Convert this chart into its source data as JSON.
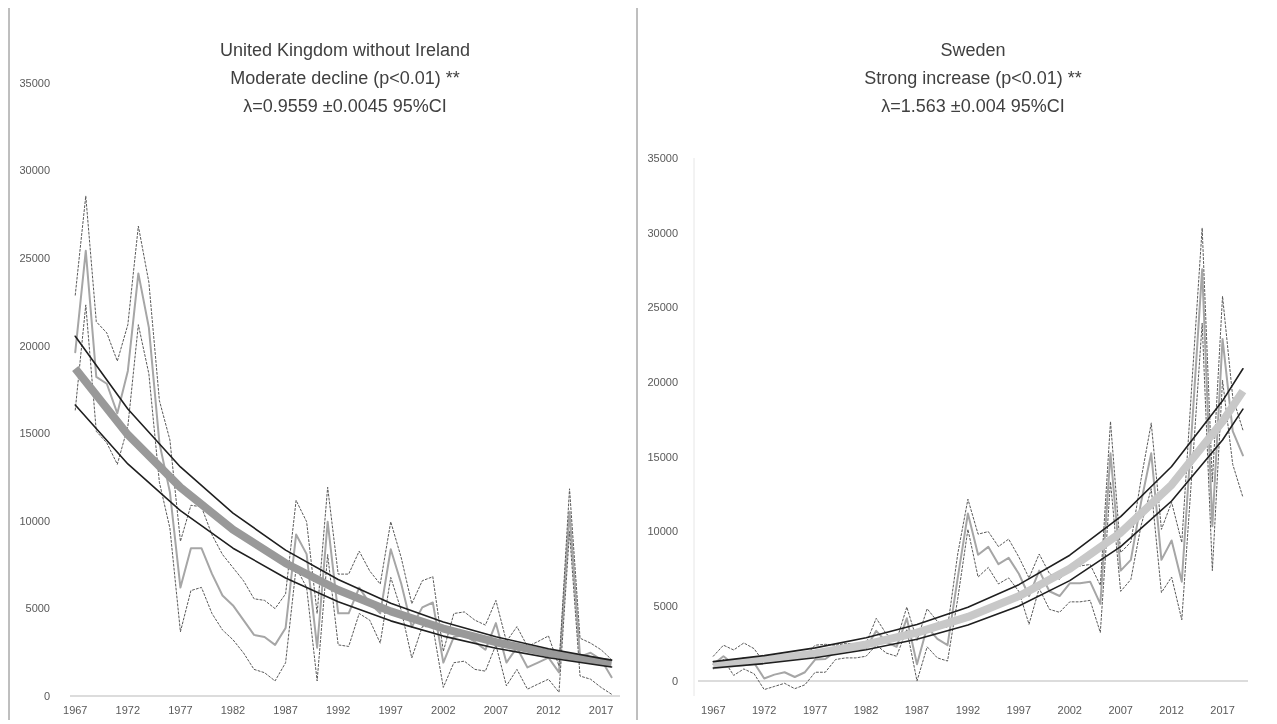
{
  "chart_data": [
    {
      "type": "line",
      "title": "United Kingdom without Ireland",
      "subtitle": "Moderate decline (p<0.01) **\nλ=0.9559 ±0.0045 95%CI",
      "x": [
        1967,
        1968,
        1969,
        1970,
        1971,
        1972,
        1973,
        1974,
        1975,
        1976,
        1977,
        1978,
        1979,
        1980,
        1981,
        1982,
        1983,
        1984,
        1985,
        1986,
        1987,
        1988,
        1989,
        1990,
        1991,
        1992,
        1993,
        1994,
        1995,
        1996,
        1997,
        1998,
        1999,
        2000,
        2001,
        2002,
        2003,
        2004,
        2005,
        2006,
        2007,
        2008,
        2009,
        2010,
        2011,
        2012,
        2013,
        2014,
        2015,
        2016,
        2017,
        2018
      ],
      "xlim": [
        1966.5,
        2018.8
      ],
      "xticks": [
        1967,
        1972,
        1977,
        1982,
        1987,
        1992,
        1997,
        2002,
        2007,
        2012,
        2017
      ],
      "ylim": [
        0,
        35000
      ],
      "yticks": [
        0,
        5000,
        10000,
        15000,
        20000,
        25000,
        30000,
        35000
      ],
      "series": [
        {
          "color": "#a6a6a6",
          "line_style": "solid",
          "values": [
            19630,
            25420,
            18220,
            17830,
            16140,
            18560,
            24130,
            21030,
            14450,
            11640,
            6190,
            8440,
            8440,
            6970,
            5740,
            5170,
            4330,
            3490,
            3370,
            2920,
            3880,
            9220,
            8100,
            2760,
            9950,
            4720,
            4720,
            6190,
            5290,
            4720,
            8380,
            6410,
            3940,
            5060,
            5340,
            1910,
            3370,
            3490,
            3090,
            2640,
            4160,
            1910,
            2760,
            1630,
            1910,
            2190,
            1350,
            10520,
            2250,
            2470,
            2080,
            1070
          ]
        },
        {
          "color": "#595959",
          "line_style": "dotted",
          "values": [
            22890,
            28550,
            21370,
            20730,
            19120,
            21200,
            26830,
            23620,
            16870,
            14620,
            8830,
            10890,
            10800,
            9200,
            8080,
            7330,
            6580,
            5550,
            5460,
            4990,
            5830,
            11170,
            9950,
            4710,
            11920,
            6960,
            6960,
            8270,
            7140,
            6390,
            9950,
            7890,
            5270,
            6580,
            6810,
            2550,
            4710,
            4800,
            4330,
            4050,
            5460,
            3110,
            3960,
            2830,
            3110,
            3430,
            1710,
            11830,
            3300,
            3020,
            2640,
            2080
          ]
        },
        {
          "color": "#595959",
          "line_style": "dotted",
          "values": [
            16330,
            22330,
            15110,
            14450,
            13230,
            15390,
            21200,
            18390,
            12200,
            9580,
            3670,
            6020,
            6200,
            4710,
            3770,
            3210,
            2460,
            1520,
            1330,
            860,
            1900,
            7330,
            6200,
            860,
            8080,
            2920,
            2830,
            4710,
            4330,
            3020,
            6770,
            4890,
            2170,
            3960,
            3960,
            490,
            1900,
            1990,
            1520,
            1420,
            2920,
            580,
            1520,
            390,
            680,
            960,
            210,
            9390,
            1140,
            960,
            490,
            100
          ]
        },
        {
          "color": "#999999",
          "line_style": "solid",
          "x": [
            1967,
            1972,
            1977,
            1982,
            1987,
            1992,
            1997,
            2002,
            2007,
            2012,
            2017,
            2018
          ],
          "values": [
            18700,
            14920,
            11910,
            9500,
            7580,
            6050,
            4830,
            3850,
            3070,
            2450,
            1960,
            1870
          ]
        },
        {
          "color": "#1f1f1f",
          "line_style": "solid",
          "x": [
            1967,
            1972,
            1977,
            1982,
            1987,
            1992,
            1997,
            2002,
            2007,
            2012,
            2017,
            2018
          ],
          "values": [
            20540,
            16390,
            13080,
            10440,
            8330,
            6650,
            5300,
            4230,
            3380,
            2700,
            2150,
            2050
          ]
        },
        {
          "color": "#1f1f1f",
          "line_style": "solid",
          "x": [
            1967,
            1972,
            1977,
            1982,
            1987,
            1992,
            1997,
            2002,
            2007,
            2012,
            2017,
            2018
          ],
          "values": [
            16610,
            13250,
            10580,
            8440,
            6740,
            5380,
            4290,
            3420,
            2730,
            2180,
            1740,
            1660
          ]
        }
      ]
    },
    {
      "type": "line",
      "title": "Sweden",
      "subtitle": "Strong increase (p<0.01) **\nλ=1.563 ±0.004 95%CI",
      "x": [
        1967,
        1968,
        1969,
        1970,
        1971,
        1972,
        1973,
        1974,
        1975,
        1976,
        1977,
        1978,
        1979,
        1980,
        1981,
        1982,
        1983,
        1984,
        1985,
        1986,
        1987,
        1988,
        1989,
        1990,
        1991,
        1992,
        1993,
        1994,
        1995,
        1996,
        1997,
        1998,
        1999,
        2000,
        2001,
        2002,
        2003,
        2004,
        2005,
        2006,
        2007,
        2008,
        2009,
        2010,
        2011,
        2012,
        2013,
        2014,
        2015,
        2016,
        2017,
        2018,
        2019
      ],
      "xlim": [
        1965.5,
        2019.5
      ],
      "xticks": [
        1967,
        1972,
        1977,
        1982,
        1987,
        1992,
        1997,
        2002,
        2007,
        2012,
        2017
      ],
      "ylim": [
        -1000,
        35000
      ],
      "yticks": [
        0,
        5000,
        10000,
        15000,
        20000,
        25000,
        30000,
        35000
      ],
      "series": [
        {
          "color": "#a6a6a6",
          "line_style": "solid",
          "values": [
            1130,
            1660,
            1130,
            1550,
            1230,
            170,
            430,
            590,
            270,
            590,
            1440,
            1480,
            1970,
            2080,
            2120,
            2190,
            3360,
            2610,
            2290,
            4200,
            1130,
            3610,
            2820,
            2400,
            6900,
            11210,
            8450,
            8980,
            7820,
            8240,
            7180,
            5690,
            7390,
            6010,
            5690,
            6540,
            6540,
            6650,
            5160,
            15240,
            7390,
            8110,
            11960,
            15240,
            8110,
            9410,
            6650,
            17000,
            27560,
            10360,
            22890,
            16730,
            15100
          ]
        },
        {
          "color": "#595959",
          "line_style": "dotted",
          "values": [
            1660,
            2400,
            2080,
            2550,
            2170,
            1230,
            1440,
            1760,
            1440,
            1660,
            2400,
            2460,
            2400,
            2510,
            2510,
            2510,
            4200,
            3140,
            2720,
            4950,
            2720,
            4840,
            3990,
            3570,
            8500,
            12170,
            9830,
            10000,
            9000,
            9500,
            8300,
            6900,
            8500,
            7200,
            6800,
            7700,
            7700,
            7800,
            6400,
            17370,
            8600,
            9300,
            13500,
            17260,
            10150,
            11960,
            9270,
            20000,
            30320,
            13330,
            25750,
            19000,
            16800
          ]
        },
        {
          "color": "#595959",
          "line_style": "dotted",
          "values": [
            810,
            1440,
            380,
            810,
            490,
            -570,
            -360,
            -150,
            -510,
            -250,
            590,
            590,
            1440,
            1550,
            1550,
            1660,
            2400,
            1870,
            1660,
            3460,
            0,
            2290,
            1550,
            1340,
            5500,
            10150,
            6960,
            7600,
            6500,
            6900,
            6000,
            3800,
            6200,
            4800,
            4600,
            5300,
            5300,
            5400,
            3250,
            13330,
            6000,
            6800,
            10400,
            12870,
            5920,
            6960,
            4100,
            14000,
            23950,
            7390,
            20130,
            14500,
            12300
          ]
        },
        {
          "color": "#c8c8c8",
          "line_style": "solid",
          "x": [
            1967,
            1972,
            1977,
            1982,
            1987,
            1992,
            1997,
            2002,
            2007,
            2012,
            2017,
            2019
          ],
          "values": [
            1060,
            1400,
            1850,
            2450,
            3240,
            4290,
            5680,
            7510,
            9930,
            13130,
            17370,
            19400
          ]
        },
        {
          "color": "#1f1f1f",
          "line_style": "solid",
          "x": [
            1967,
            1972,
            1977,
            1982,
            1987,
            1992,
            1997,
            2002,
            2007,
            2012,
            2017,
            2019
          ],
          "values": [
            1300,
            1700,
            2220,
            2900,
            3780,
            4940,
            6450,
            8420,
            11000,
            14360,
            18750,
            20900
          ]
        },
        {
          "color": "#1f1f1f",
          "line_style": "solid",
          "x": [
            1967,
            1972,
            1977,
            1982,
            1987,
            1992,
            1997,
            2002,
            2007,
            2012,
            2017,
            2019
          ],
          "values": [
            870,
            1170,
            1560,
            2090,
            2800,
            3750,
            5020,
            6720,
            9000,
            12050,
            16130,
            18200
          ]
        }
      ]
    }
  ]
}
